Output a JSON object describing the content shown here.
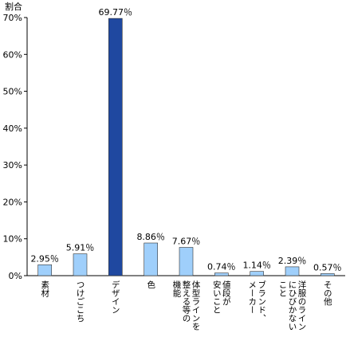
{
  "chart_data": {
    "type": "bar",
    "ylabel": "割合",
    "ylim": [
      0,
      70
    ],
    "yticks": [
      "0%",
      "10%",
      "20%",
      "30%",
      "40%",
      "50%",
      "60%",
      "70%"
    ],
    "grid": false,
    "legend": "none",
    "categories": [
      [
        "素材"
      ],
      [
        "つけごこち"
      ],
      [
        "デザイン"
      ],
      [
        "色"
      ],
      [
        "体型ラインを",
        "整える等の",
        "機能"
      ],
      [
        "値段が",
        "安いこと"
      ],
      [
        "ブランド、",
        "メーカー"
      ],
      [
        "洋服のライン",
        "にひびかない",
        "こと"
      ],
      [
        "その他"
      ]
    ],
    "values": [
      2.95,
      5.91,
      69.77,
      8.86,
      7.67,
      0.74,
      1.14,
      2.39,
      0.57
    ],
    "data_labels": [
      "2.95％",
      "5.91％",
      "69.77％",
      "8.86％",
      "7.67％",
      "0.74％",
      "1.14％",
      "2.39％",
      "0.57％"
    ],
    "highlight_index": 2,
    "colors": {
      "bar": "#9fcffb",
      "bar_highlight": "#1f48a0",
      "bar_stroke": "#333333",
      "axis": "#000000"
    }
  }
}
